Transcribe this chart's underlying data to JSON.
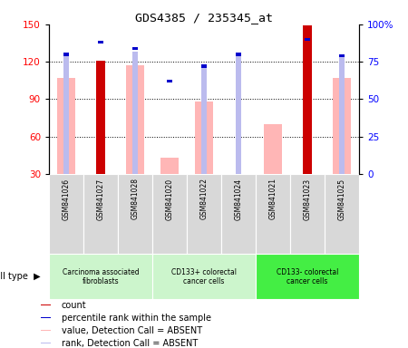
{
  "title": "GDS4385 / 235345_at",
  "samples": [
    "GSM841026",
    "GSM841027",
    "GSM841028",
    "GSM841020",
    "GSM841022",
    "GSM841024",
    "GSM841021",
    "GSM841023",
    "GSM841025"
  ],
  "count_values": [
    0,
    121,
    0,
    0,
    0,
    0,
    0,
    149,
    0
  ],
  "percentile_rank": [
    80,
    88,
    84,
    62,
    72,
    80,
    0,
    90,
    79
  ],
  "value_absent": [
    107,
    0,
    117,
    43,
    88,
    0,
    70,
    0,
    107
  ],
  "rank_absent": [
    79,
    0,
    82,
    0,
    73,
    79,
    0,
    0,
    79
  ],
  "has_count": [
    false,
    true,
    false,
    false,
    false,
    false,
    false,
    true,
    false
  ],
  "has_percentile": [
    true,
    true,
    true,
    true,
    true,
    true,
    false,
    true,
    true
  ],
  "has_value_absent": [
    true,
    false,
    true,
    true,
    true,
    false,
    true,
    false,
    true
  ],
  "has_rank_absent": [
    true,
    false,
    true,
    false,
    true,
    true,
    false,
    false,
    true
  ],
  "cell_groups": [
    {
      "label": "Carcinoma associated\nfibroblasts",
      "start": 0,
      "end": 3,
      "color": "#b8f0b8"
    },
    {
      "label": "CD133+ colorectal\ncancer cells",
      "start": 3,
      "end": 6,
      "color": "#b8f0b8"
    },
    {
      "label": "CD133- colorectal\ncancer cells",
      "start": 6,
      "end": 9,
      "color": "#55ee55"
    }
  ],
  "ylim_left": [
    30,
    150
  ],
  "ylim_right": [
    0,
    100
  ],
  "yticks_left": [
    30,
    60,
    90,
    120,
    150
  ],
  "yticks_right": [
    0,
    25,
    50,
    75,
    100
  ],
  "color_count": "#CC0000",
  "color_percentile": "#0000CC",
  "color_value_absent": "#FFB6B6",
  "color_rank_absent": "#BBBBEE",
  "fig_width": 4.5,
  "fig_height": 3.84
}
